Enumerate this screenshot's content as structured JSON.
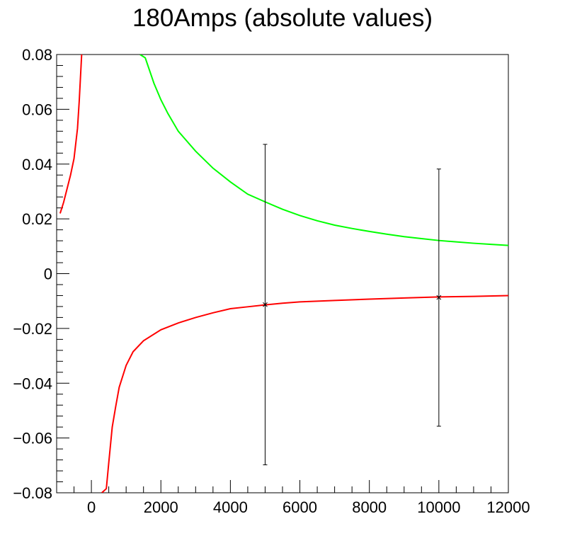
{
  "chart_data": {
    "type": "line",
    "title": "180Amps (absolute values)",
    "xlabel": "",
    "ylabel": "",
    "xlim": [
      -1000,
      12000
    ],
    "ylim": [
      -0.08,
      0.08
    ],
    "xticks": [
      0,
      2000,
      4000,
      6000,
      8000,
      10000,
      12000
    ],
    "xtick_labels": [
      "0",
      "2000",
      "4000",
      "6000",
      "8000",
      "10000",
      "12000"
    ],
    "yticks": [
      -0.08,
      -0.06,
      -0.04,
      -0.02,
      0,
      0.02,
      0.04,
      0.06,
      0.08
    ],
    "ytick_labels": [
      "−0.08",
      "−0.06",
      "−0.04",
      "−0.02",
      "0",
      "0.02",
      "0.04",
      "0.06",
      "0.08"
    ],
    "grid": false,
    "legend": "none",
    "series": [
      {
        "color": "#ff0000",
        "points": [
          [
            -900,
            0.022
          ],
          [
            -800,
            0.026
          ],
          [
            -700,
            0.031
          ],
          [
            -600,
            0.036
          ],
          [
            -500,
            0.042
          ],
          [
            -400,
            0.053
          ],
          [
            -350,
            0.063
          ],
          [
            -280,
            0.08
          ]
        ]
      },
      {
        "color": "#00ff00",
        "points": [
          [
            1400,
            0.08
          ],
          [
            1550,
            0.0788
          ],
          [
            1800,
            0.0695
          ],
          [
            2000,
            0.0635
          ],
          [
            2200,
            0.0585
          ],
          [
            2500,
            0.052
          ],
          [
            3000,
            0.0447
          ],
          [
            3500,
            0.0385
          ],
          [
            4000,
            0.0335
          ],
          [
            4500,
            0.029
          ],
          [
            5000,
            0.0262
          ],
          [
            5500,
            0.0235
          ],
          [
            6000,
            0.0212
          ],
          [
            6500,
            0.0193
          ],
          [
            7000,
            0.0177
          ],
          [
            7500,
            0.0165
          ],
          [
            8000,
            0.0154
          ],
          [
            8500,
            0.0144
          ],
          [
            9000,
            0.0135
          ],
          [
            9500,
            0.0128
          ],
          [
            10000,
            0.0121
          ],
          [
            10500,
            0.0116
          ],
          [
            11000,
            0.0111
          ],
          [
            11500,
            0.0107
          ],
          [
            12000,
            0.0103
          ]
        ]
      },
      {
        "color": "#ff0000",
        "points": [
          [
            300,
            -0.08
          ],
          [
            430,
            -0.0785
          ],
          [
            500,
            -0.069
          ],
          [
            600,
            -0.056
          ],
          [
            700,
            -0.0485
          ],
          [
            800,
            -0.0415
          ],
          [
            1000,
            -0.0335
          ],
          [
            1200,
            -0.0285
          ],
          [
            1500,
            -0.0245
          ],
          [
            2000,
            -0.0205
          ],
          [
            2500,
            -0.018
          ],
          [
            3000,
            -0.016
          ],
          [
            3500,
            -0.0143
          ],
          [
            4000,
            -0.0128
          ],
          [
            4500,
            -0.0121
          ],
          [
            5000,
            -0.0114
          ],
          [
            5500,
            -0.0108
          ],
          [
            6000,
            -0.0103
          ],
          [
            7000,
            -0.0098
          ],
          [
            8000,
            -0.0093
          ],
          [
            9000,
            -0.0089
          ],
          [
            10000,
            -0.0085
          ],
          [
            11000,
            -0.0083
          ],
          [
            12000,
            -0.008
          ]
        ]
      }
    ],
    "error_points": [
      {
        "x": 5000,
        "y": -0.0113,
        "y_low": -0.0698,
        "y_high": 0.0472,
        "color": "#000000"
      },
      {
        "x": 10000,
        "y": -0.0087,
        "y_low": -0.0557,
        "y_high": 0.0382,
        "color": "#000000"
      }
    ]
  }
}
